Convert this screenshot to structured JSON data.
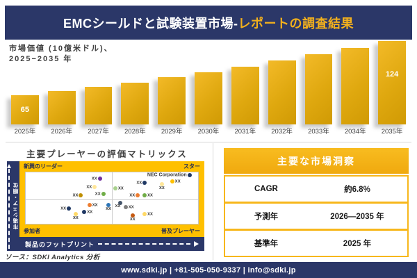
{
  "colors": {
    "navy": "#2B3768",
    "gold_accent": "#F2B01D",
    "bar_gold_light": "#F3BA28",
    "bar_gold_dark": "#D09A04",
    "matrix_yellow": "#FFC000",
    "table_border_yellow": "#F7B71B",
    "divider_gray": "#D8D8D8",
    "text_dark": "#3F3F3F"
  },
  "header": {
    "title_main": "EMCシールドと試験装置市場-",
    "title_accent": "レポートの調査結果"
  },
  "chart_data": [
    {
      "type": "bar",
      "title": "市場価値（10億米ドル）、2025−2035年",
      "label_line1": "市場価値 (10億米ドル)、",
      "label_line2": "2025−2035 年",
      "categories": [
        "2025年",
        "2026年",
        "2027年",
        "2028年",
        "2029年",
        "2030年",
        "2031年",
        "2032年",
        "2033年",
        "2034年",
        "2035年"
      ],
      "values": [
        65,
        70,
        74,
        79,
        85,
        90,
        96,
        103,
        110,
        117,
        124
      ],
      "unit": "10億米ドル",
      "value_labels_shown": {
        "2025年": "65",
        "2035年": "124"
      },
      "bar_color": "#DFA80F",
      "grid": false
    },
    {
      "type": "scatter",
      "title": "主要プレーヤーの評価マトリックス",
      "xlabel": "製品のフットプリント",
      "ylabel": "市場シェア・順位",
      "quadrants": {
        "top_left": "新興のリーダー",
        "top_right": "スター",
        "bottom_left": "参加者",
        "bottom_right": "普及プレーヤー"
      },
      "points": [
        {
          "x": 43,
          "y": 12,
          "color": "#7030A0",
          "label": "xx",
          "pos": "left"
        },
        {
          "x": 40,
          "y": 29,
          "color": "#FFE699",
          "label": "xx",
          "pos": "left"
        },
        {
          "x": 32,
          "y": 44,
          "color": "#BF8F00",
          "label": "xx",
          "pos": "left"
        },
        {
          "x": 45,
          "y": 42,
          "color": "#70AD47",
          "label": "xx",
          "pos": "left"
        },
        {
          "x": 52,
          "y": 31,
          "color": "#A9D18E",
          "label": "xx",
          "pos": "right"
        },
        {
          "x": 69,
          "y": 20,
          "color": "#1F3864",
          "label": "xx",
          "pos": "left"
        },
        {
          "x": 79,
          "y": 23,
          "color": "#FFE699",
          "label": "xx",
          "pos": "below"
        },
        {
          "x": 85,
          "y": 18,
          "color": "#FFC000",
          "label": "xx",
          "pos": "right"
        },
        {
          "x": 65,
          "y": 45,
          "color": "#ED7D31",
          "label": "xx",
          "pos": "left"
        },
        {
          "x": 69,
          "y": 44,
          "color": "#70AD47",
          "label": "xx",
          "pos": "right"
        },
        {
          "x": 95,
          "y": 6,
          "color": "#1F3864",
          "label": "NEC Corporation",
          "pos": "left"
        },
        {
          "x": 25,
          "y": 70,
          "color": "#1F3864",
          "label": "xx",
          "pos": "left"
        },
        {
          "x": 37,
          "y": 64,
          "color": "#ED7D31",
          "label": "xx",
          "pos": "right"
        },
        {
          "x": 34,
          "y": 77,
          "color": "#203864",
          "label": "xx",
          "pos": "right"
        },
        {
          "x": 29,
          "y": 81,
          "color": "#FFD966",
          "label": "xx",
          "pos": "below"
        },
        {
          "x": 48,
          "y": 64,
          "color": "#2E75B6",
          "label": "xx",
          "pos": "below"
        },
        {
          "x": 55,
          "y": 59,
          "color": "#44546A",
          "label": "xx",
          "pos": "below-left"
        },
        {
          "x": 58,
          "y": 67,
          "color": "#7F7F7F",
          "label": "xx",
          "pos": "right"
        },
        {
          "x": 62,
          "y": 84,
          "color": "#C55A11",
          "label": "xx",
          "pos": "below"
        },
        {
          "x": 69,
          "y": 81,
          "color": "#FFD966",
          "label": "xx",
          "pos": "right"
        }
      ]
    }
  ],
  "insights": {
    "title": "主要な市場洞察",
    "rows": [
      {
        "label": "CAGR",
        "value": "約6.8%"
      },
      {
        "label": "予測年",
        "value": "2026—2035 年"
      },
      {
        "label": "基準年",
        "value": "2025 年"
      }
    ]
  },
  "source_note": "ソース：SDKI Analytics 分析",
  "footer": {
    "text": "www.sdki.jp | +81-505-050-9337 | info@sdki.jp"
  }
}
